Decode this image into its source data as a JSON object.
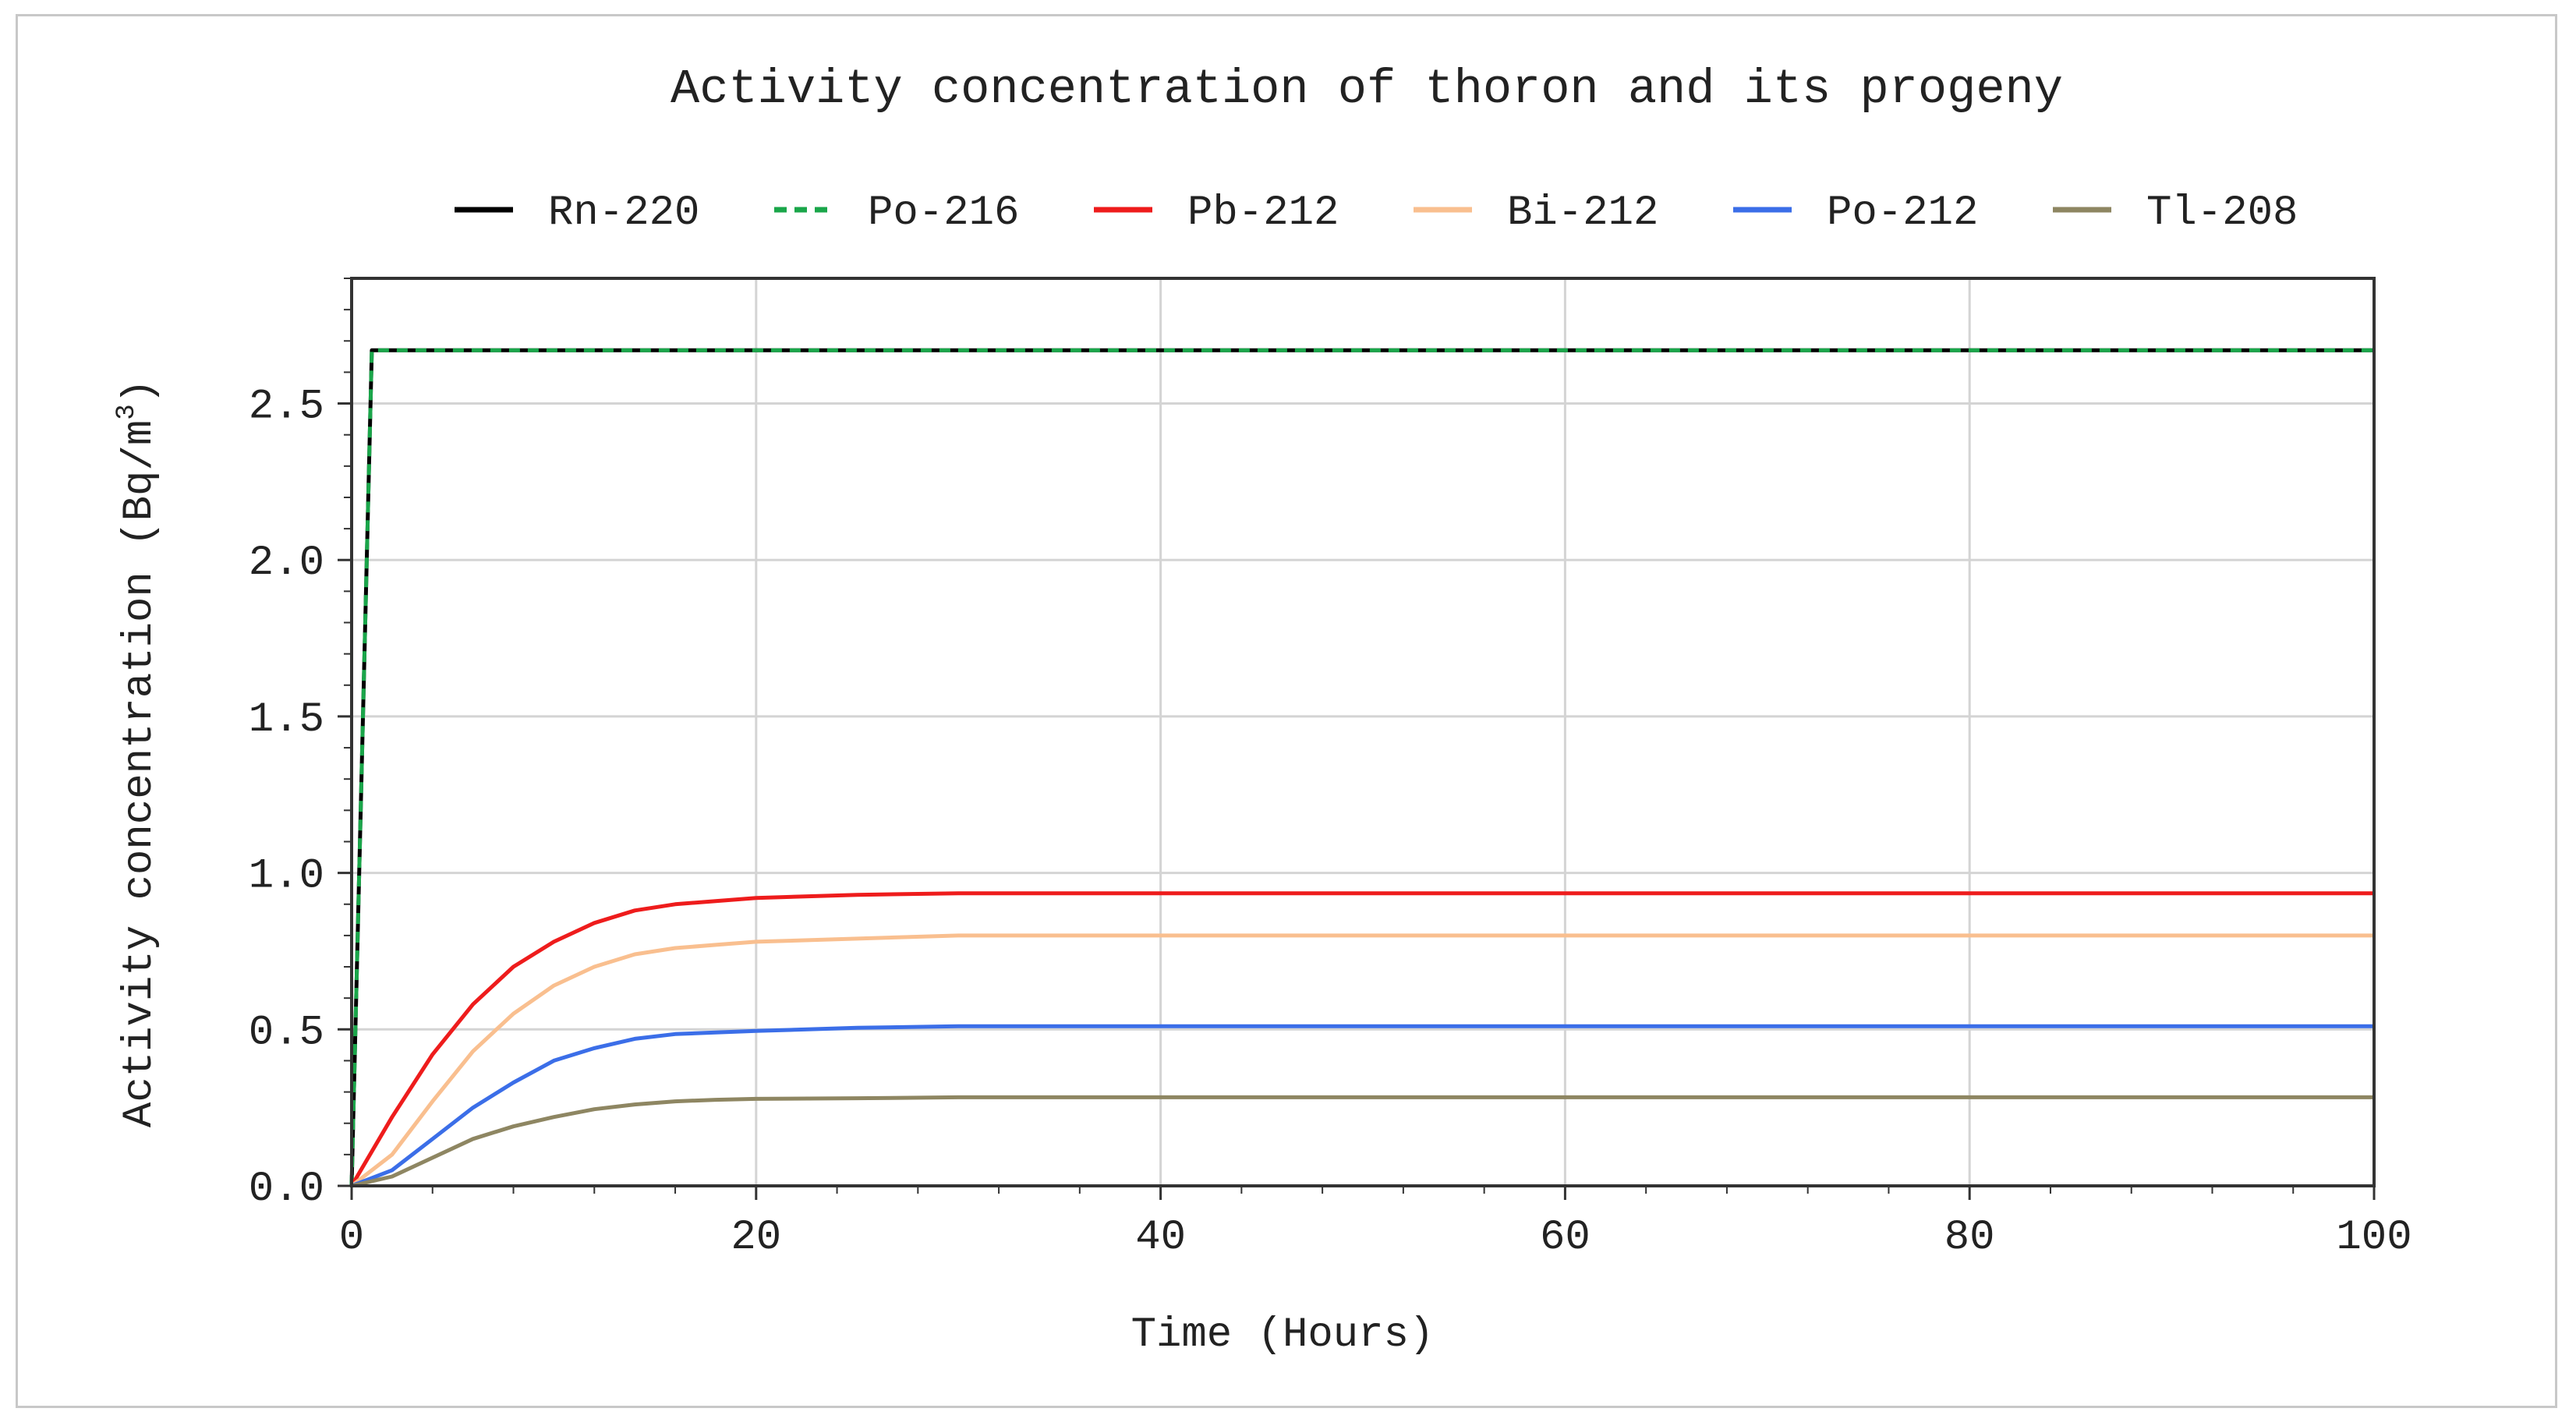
{
  "chart_data": {
    "type": "line",
    "title": "Activity concentration of thoron and its progeny",
    "xlabel": "Time (Hours)",
    "ylabel": "Activity concentration (Bq/m",
    "ylabel_sup": "3",
    "ylabel_end": ")",
    "xlim": [
      0,
      100
    ],
    "ylim": [
      0,
      2.9
    ],
    "x_ticks": [
      "0",
      "20",
      "40",
      "60",
      "80",
      "100"
    ],
    "y_ticks": [
      "0.0",
      "0.5",
      "1.0",
      "1.5",
      "2.0",
      "2.5"
    ],
    "grid": true,
    "legend_position": "top",
    "series": [
      {
        "name": "Rn-220",
        "color": "#000000",
        "dash": "solid",
        "x": [
          0,
          1,
          100
        ],
        "y": [
          0,
          2.67,
          2.67
        ]
      },
      {
        "name": "Po-216",
        "color": "#1aa64a",
        "dash": "dashed",
        "x": [
          0,
          1,
          100
        ],
        "y": [
          0,
          2.67,
          2.67
        ]
      },
      {
        "name": "Pb-212",
        "color": "#ee1c1c",
        "dash": "solid",
        "x": [
          0,
          2,
          4,
          6,
          8,
          10,
          12,
          14,
          16,
          18,
          20,
          25,
          30,
          40,
          50,
          60,
          80,
          100
        ],
        "y": [
          0,
          0.22,
          0.42,
          0.58,
          0.7,
          0.78,
          0.84,
          0.88,
          0.9,
          0.91,
          0.92,
          0.93,
          0.935,
          0.935,
          0.935,
          0.935,
          0.935,
          0.935
        ]
      },
      {
        "name": "Bi-212",
        "color": "#f9bf8f",
        "dash": "solid",
        "x": [
          0,
          2,
          4,
          6,
          8,
          10,
          12,
          14,
          16,
          18,
          20,
          25,
          30,
          40,
          50,
          60,
          80,
          100
        ],
        "y": [
          0,
          0.1,
          0.27,
          0.43,
          0.55,
          0.64,
          0.7,
          0.74,
          0.76,
          0.77,
          0.78,
          0.79,
          0.8,
          0.8,
          0.8,
          0.8,
          0.8,
          0.8
        ]
      },
      {
        "name": "Po-212",
        "color": "#3b6ee8",
        "dash": "solid",
        "x": [
          0,
          2,
          4,
          6,
          8,
          10,
          12,
          14,
          16,
          18,
          20,
          25,
          30,
          40,
          50,
          60,
          80,
          100
        ],
        "y": [
          0,
          0.05,
          0.15,
          0.25,
          0.33,
          0.4,
          0.44,
          0.47,
          0.485,
          0.49,
          0.495,
          0.505,
          0.51,
          0.51,
          0.51,
          0.51,
          0.51,
          0.51
        ]
      },
      {
        "name": "Tl-208",
        "color": "#8e8662",
        "dash": "solid",
        "x": [
          0,
          2,
          4,
          6,
          8,
          10,
          12,
          14,
          16,
          18,
          20,
          25,
          30,
          40,
          50,
          60,
          80,
          100
        ],
        "y": [
          0,
          0.03,
          0.09,
          0.15,
          0.19,
          0.22,
          0.245,
          0.26,
          0.27,
          0.275,
          0.278,
          0.28,
          0.283,
          0.283,
          0.283,
          0.283,
          0.283,
          0.283
        ]
      }
    ]
  }
}
